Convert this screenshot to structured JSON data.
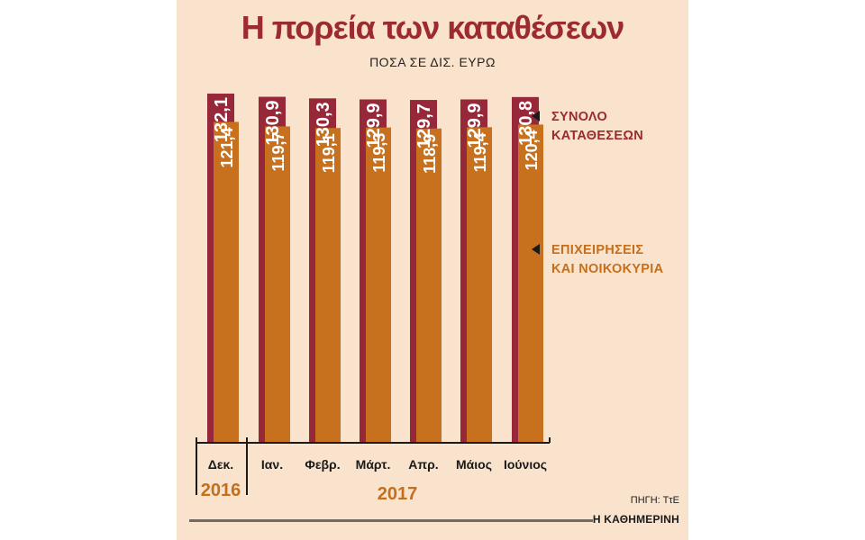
{
  "title": "Η πορεία των καταθέσεων",
  "subtitle": "ΠΟΣΑ ΣΕ ΔΙΣ. ΕΥΡΩ",
  "source": "ΠΗΓΗ: ΤτΕ",
  "publisher": "Η ΚΑΘΗΜΕΡΙΝΗ",
  "legend": {
    "total_line1": "ΣΥΝΟΛΟ",
    "total_line2": "ΚΑΤΑΘΕΣΕΩΝ",
    "biz_line1": "ΕΠΙΧΕΙΡΗΣΕΙΣ",
    "biz_line2": "ΚΑΙ ΝΟΙΚΟΚΥΡΙΑ"
  },
  "years": {
    "first": "2016",
    "second": "2017"
  },
  "colors": {
    "total": "#96283a",
    "business": "#c7711e",
    "background": "#f9e3cc",
    "title": "#9b2a31"
  },
  "chart_data": {
    "type": "bar",
    "categories": [
      "Δεκ.",
      "Ιαν.",
      "Φεβρ.",
      "Μάρτ.",
      "Απρ.",
      "Μάιος",
      "Ιούνιος"
    ],
    "value_labels_total": [
      "132,1",
      "130,9",
      "130,3",
      "129,9",
      "129,7",
      "129,9",
      "130,8"
    ],
    "value_labels_business": [
      "121,4",
      "119,7",
      "119,1",
      "119,3",
      "118,9",
      "119,4",
      "120,4"
    ],
    "series": [
      {
        "name": "ΣΥΝΟΛΟ ΚΑΤΑΘΕΣΕΩΝ",
        "values": [
          132.1,
          130.9,
          130.3,
          129.9,
          129.7,
          129.9,
          130.8
        ]
      },
      {
        "name": "ΕΠΙΧΕΙΡΗΣΕΙΣ ΚΑΙ ΝΟΙΚΟΚΥΡΙΑ",
        "values": [
          121.4,
          119.7,
          119.1,
          119.3,
          118.9,
          119.4,
          120.4
        ]
      }
    ],
    "title": "Η πορεία των καταθέσεων",
    "ylabel": "ΠΟΣΑ ΣΕ ΔΙΣ. ΕΥΡΩ",
    "xlabel": "",
    "legend": "right",
    "grid": false
  }
}
